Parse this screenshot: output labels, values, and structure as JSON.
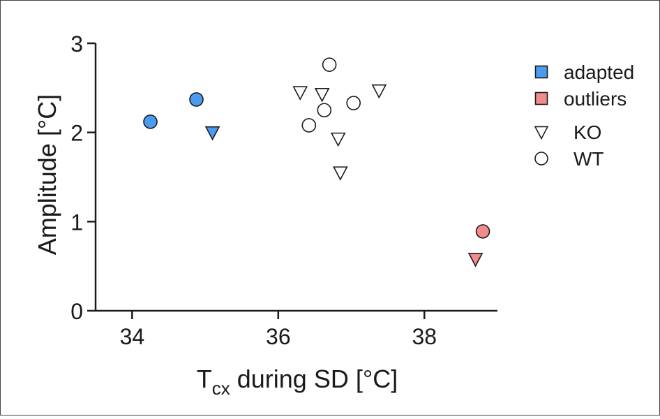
{
  "chart_data": {
    "type": "scatter",
    "title": "",
    "xlabel_main": "T",
    "xlabel_sub": "cx",
    "xlabel_rest": " during SD [°C]",
    "ylabel": "Amplitude [°C]",
    "xlim": [
      33.5,
      39.0
    ],
    "ylim": [
      0,
      3
    ],
    "xticks": [
      34,
      36,
      38
    ],
    "yticks": [
      0,
      1,
      2,
      3
    ],
    "grid": false,
    "legend_placement": "top-right",
    "colors": {
      "adapted": "#4b9cf0",
      "outliers": "#f28b8b",
      "none": "#ffffff",
      "stroke": "#1a1a1a"
    },
    "legend": [
      {
        "label": "adapted",
        "marker": "square",
        "color": "adapted"
      },
      {
        "label": "outliers",
        "marker": "square",
        "color": "outliers"
      },
      {
        "label": "KO",
        "marker": "triangle-down",
        "color": "none"
      },
      {
        "label": "WT",
        "marker": "circle",
        "color": "none"
      }
    ],
    "series": [
      {
        "group": "adapted",
        "genotype": "WT",
        "x": 34.25,
        "y": 2.12
      },
      {
        "group": "adapted",
        "genotype": "WT",
        "x": 34.88,
        "y": 2.37
      },
      {
        "group": "adapted",
        "genotype": "KO",
        "x": 35.1,
        "y": 2.0
      },
      {
        "group": "outliers",
        "genotype": "WT",
        "x": 38.8,
        "y": 0.89
      },
      {
        "group": "outliers",
        "genotype": "KO",
        "x": 38.7,
        "y": 0.58
      },
      {
        "group": "none",
        "genotype": "KO",
        "x": 36.3,
        "y": 2.45
      },
      {
        "group": "none",
        "genotype": "KO",
        "x": 36.6,
        "y": 2.43
      },
      {
        "group": "none",
        "genotype": "KO",
        "x": 36.82,
        "y": 1.93
      },
      {
        "group": "none",
        "genotype": "KO",
        "x": 36.85,
        "y": 1.55
      },
      {
        "group": "none",
        "genotype": "KO",
        "x": 37.38,
        "y": 2.47
      },
      {
        "group": "none",
        "genotype": "WT",
        "x": 36.7,
        "y": 2.76
      },
      {
        "group": "none",
        "genotype": "WT",
        "x": 36.63,
        "y": 2.25
      },
      {
        "group": "none",
        "genotype": "WT",
        "x": 36.42,
        "y": 2.08
      },
      {
        "group": "none",
        "genotype": "WT",
        "x": 37.03,
        "y": 2.33
      }
    ]
  }
}
